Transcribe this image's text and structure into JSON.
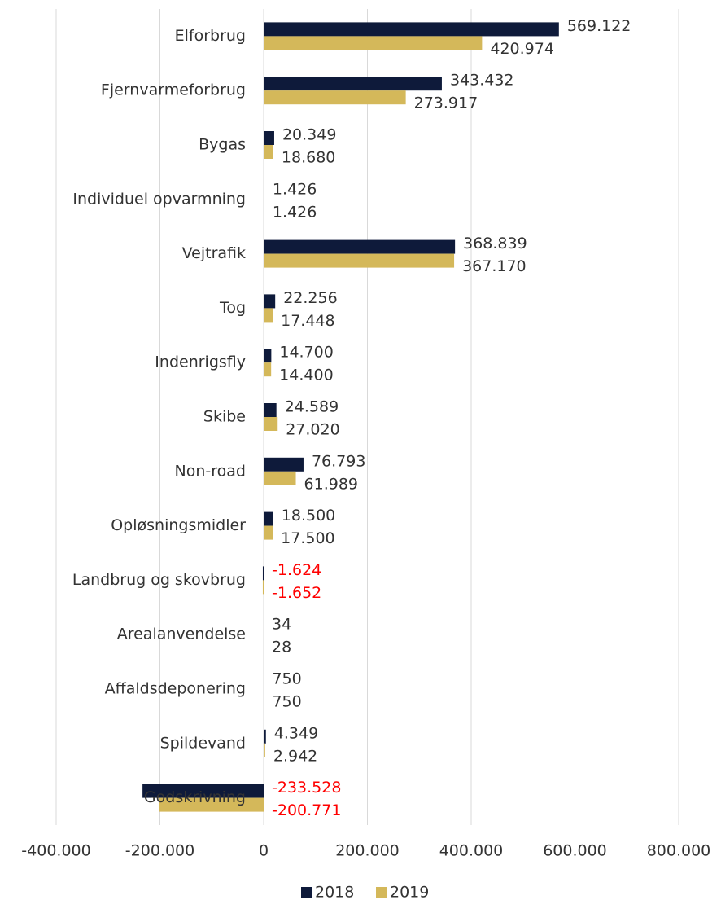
{
  "chart_data": {
    "type": "hbar",
    "categories": [
      "Elforbrug",
      "Fjernvarmeforbrug",
      "Bygas",
      "Individuel opvarmning",
      "Vejtrafik",
      "Tog",
      "Indenrigsfly",
      "Skibe",
      "Non-road",
      "Opløsningsmidler",
      "Landbrug og skovbrug",
      "Arealanvendelse",
      "Affaldsdeponering",
      "Spildevand",
      "Godskrivning"
    ],
    "series": [
      {
        "name": "2018",
        "color": "#0e1a3a",
        "values": [
          569122,
          343432,
          20349,
          1426,
          368839,
          22256,
          14700,
          24589,
          76793,
          18500,
          -1624,
          34,
          750,
          4349,
          -233528
        ],
        "value_labels": [
          "569.122",
          "343.432",
          "20.349",
          "1.426",
          "368.839",
          "22.256",
          "14.700",
          "24.589",
          "76.793",
          "18.500",
          "-1.624",
          "34",
          "750",
          "4.349",
          "-233.528"
        ]
      },
      {
        "name": "2019",
        "color": "#d4b85a",
        "values": [
          420974,
          273917,
          18680,
          1426,
          367170,
          17448,
          14400,
          27020,
          61989,
          17500,
          -1652,
          28,
          750,
          2942,
          -200771
        ],
        "value_labels": [
          "420.974",
          "273.917",
          "18.680",
          "1.426",
          "367.170",
          "17.448",
          "14.400",
          "27.020",
          "61.989",
          "17.500",
          "-1.652",
          "28",
          "750",
          "2.942",
          "-200.771"
        ]
      }
    ],
    "xlim": [
      -400000,
      800000
    ],
    "xticks": [
      {
        "value": -400000,
        "label": "-400.000"
      },
      {
        "value": -200000,
        "label": "-200.000"
      },
      0,
      {
        "value": 200000,
        "label": "200.000"
      },
      {
        "value": 400000,
        "label": "400.000"
      },
      {
        "value": 600000,
        "label": "600.000"
      },
      {
        "value": 800000,
        "label": "800.000"
      }
    ],
    "grid": true,
    "legend": "bottom",
    "negative_label_color": "#ff0000"
  }
}
